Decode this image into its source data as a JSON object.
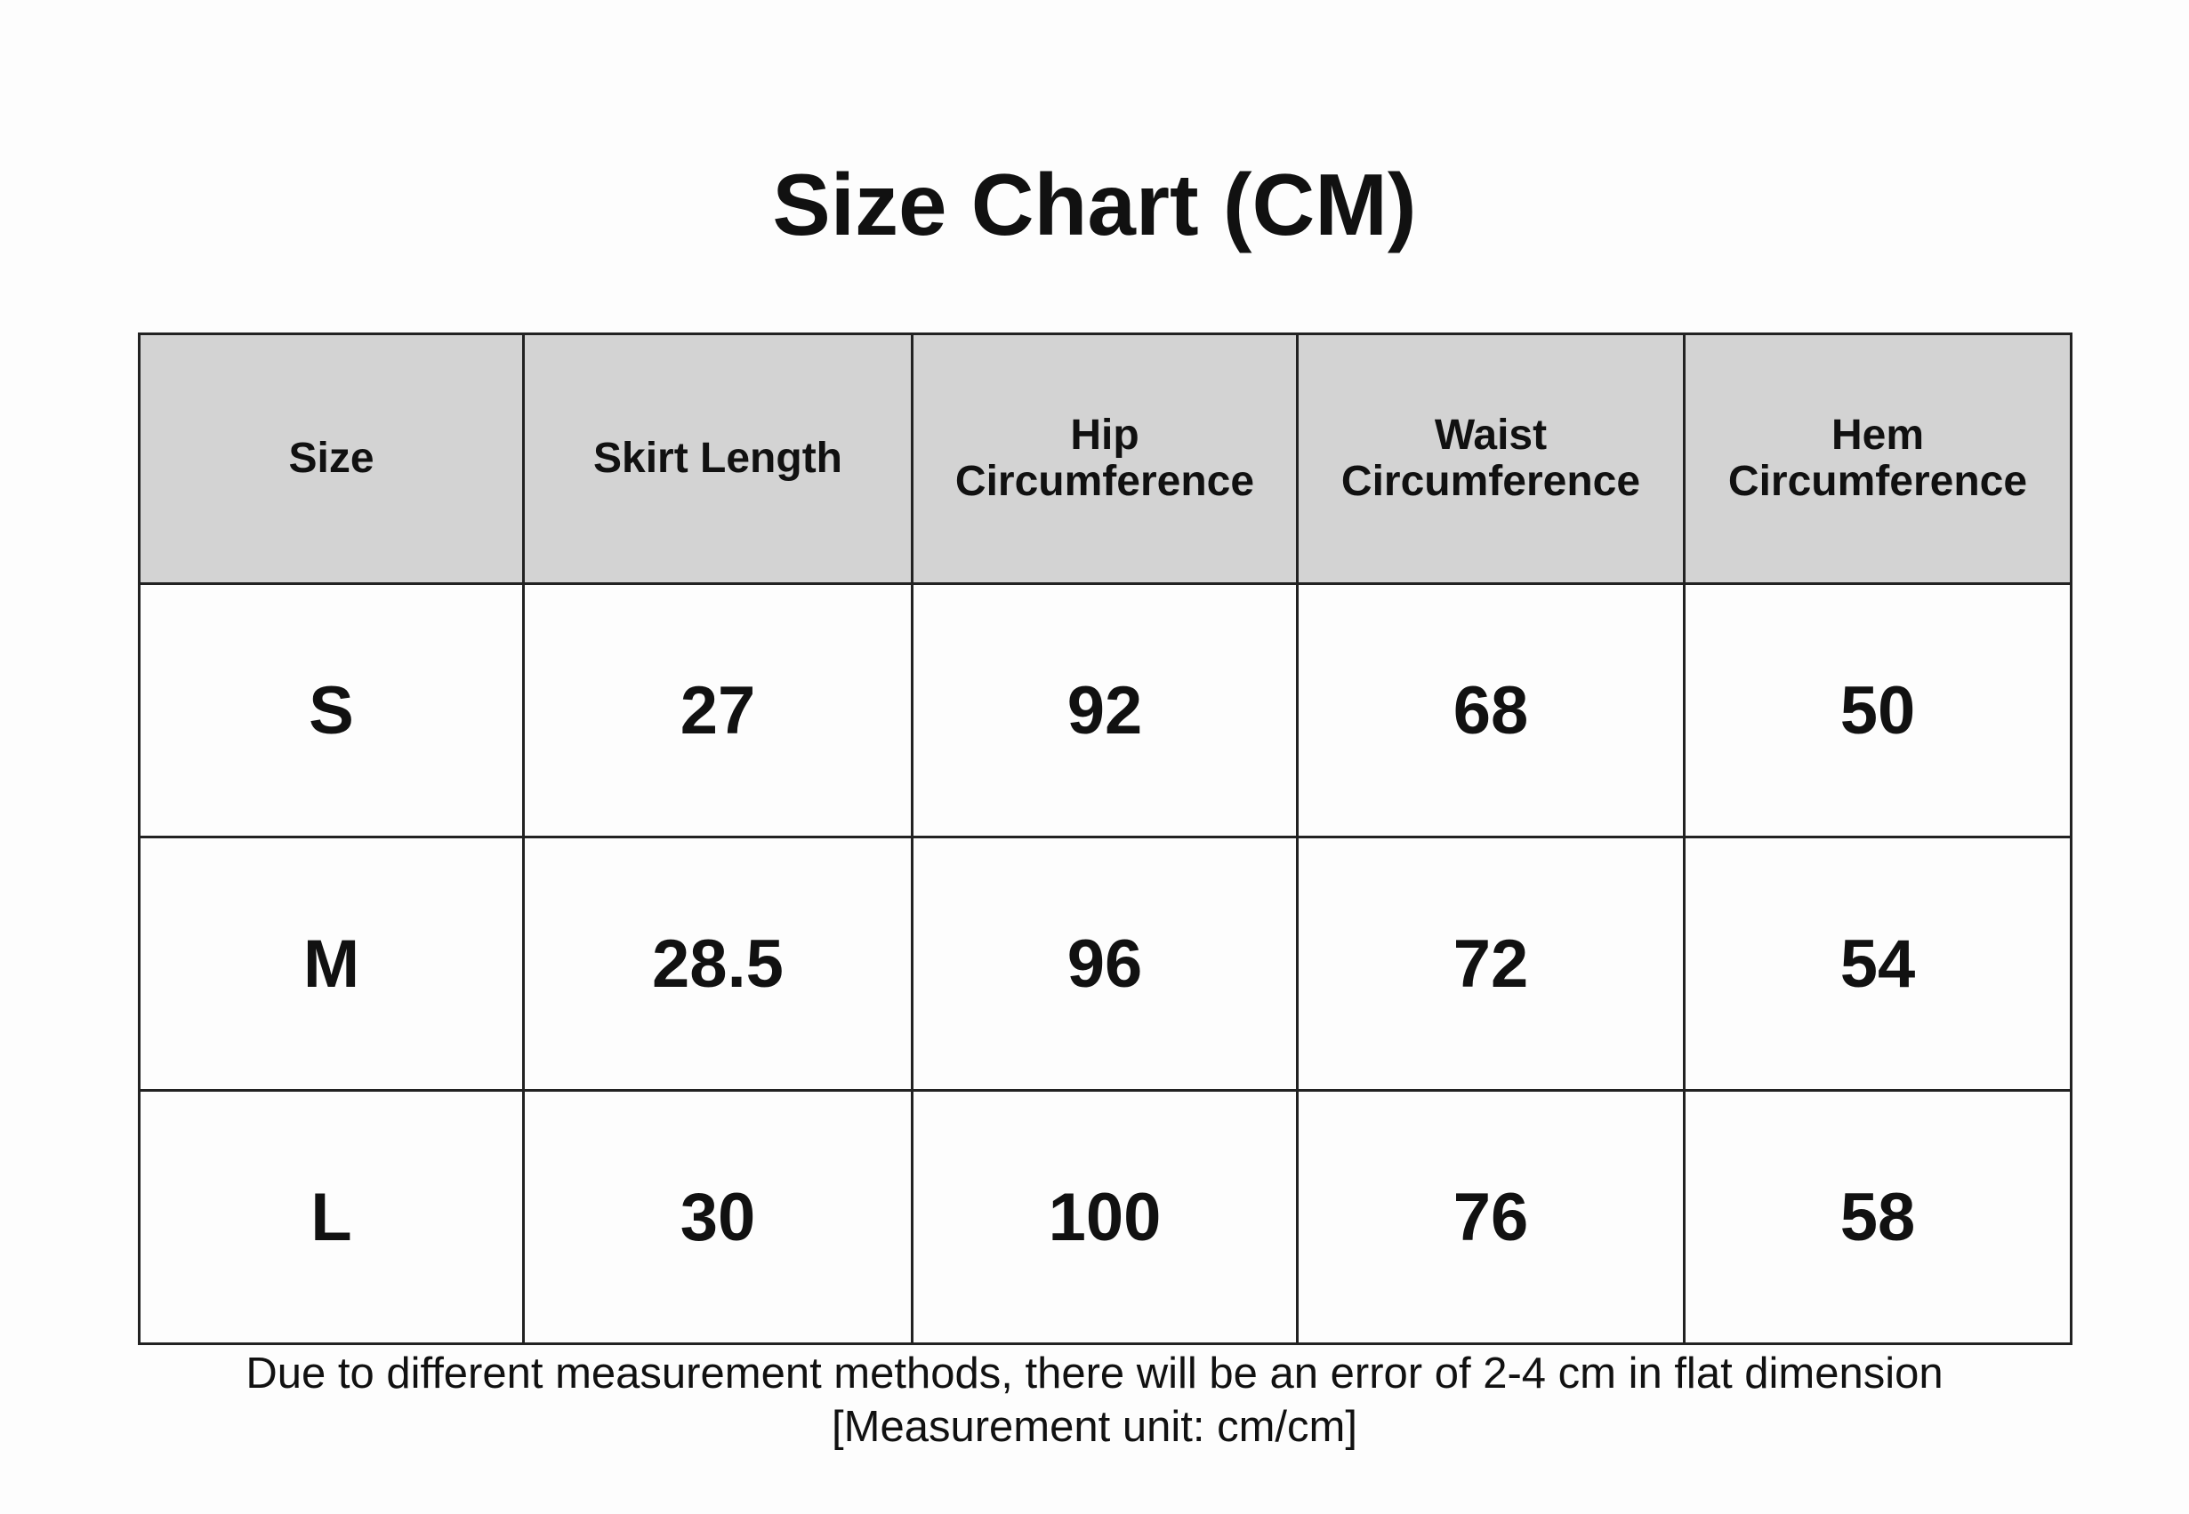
{
  "title": "Size Chart (CM)",
  "table": {
    "header": [
      "Size",
      "Skirt Length",
      "Hip\nCircumference",
      "Waist\nCircumference",
      "Hem\nCircumference"
    ],
    "rows": [
      [
        "S",
        "27",
        "92",
        "68",
        "50"
      ],
      [
        "M",
        "28.5",
        "96",
        "72",
        "54"
      ],
      [
        "L",
        "30",
        "100",
        "76",
        "58"
      ]
    ]
  },
  "note": [
    "Due to different measurement methods, there will be an error of 2-4 cm in flat dimension",
    "[Measurement unit: cm/cm]"
  ]
}
